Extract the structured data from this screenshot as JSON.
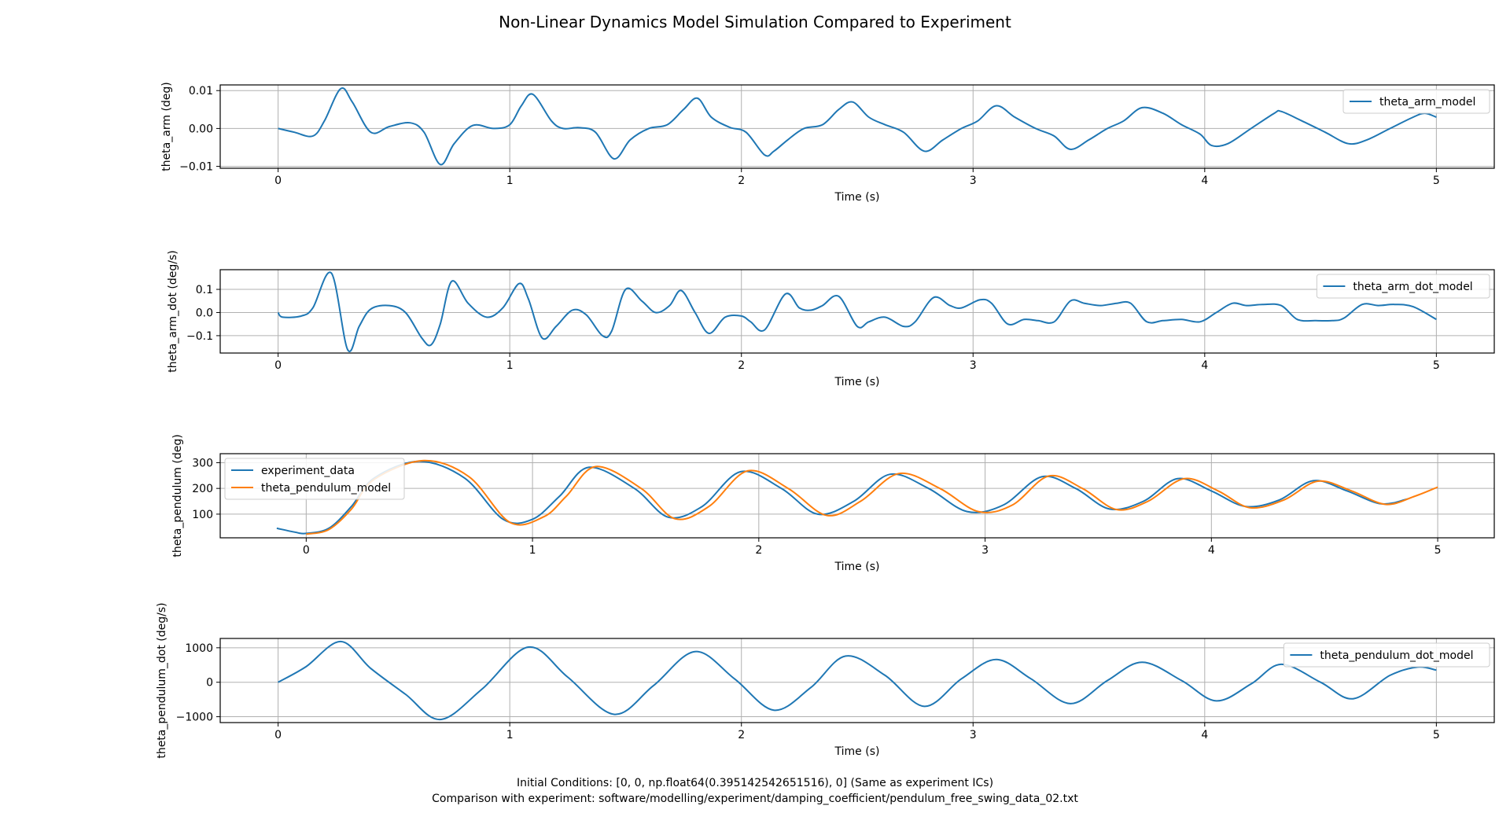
{
  "figure_title": "Non-Linear Dynamics Model Simulation Compared to Experiment",
  "captions": [
    "Initial Conditions: [0, 0, np.float64(0.395142542651516), 0] (Same as experiment ICs)",
    "Comparison with experiment: software/modelling/experiment/damping_coefficient/pendulum_free_swing_data_02.txt"
  ],
  "colors": {
    "blue": "#1f77b4",
    "orange": "#ff7f0e",
    "grid": "#b0b0b0"
  },
  "chart_data": [
    {
      "type": "line",
      "xlabel": "Time (s)",
      "ylabel": "theta_arm (deg)",
      "xlim": [
        -0.25,
        5.25
      ],
      "ylim": [
        -0.0105,
        0.0115
      ],
      "xticks": [
        0,
        1,
        2,
        3,
        4,
        5
      ],
      "yticks": [
        -0.01,
        0.0,
        0.01
      ],
      "ytick_labels": [
        "−0.01",
        "0.00",
        "0.01"
      ],
      "grid": true,
      "legend_position": "upper right",
      "series": [
        {
          "name": "theta_arm_model",
          "color": "#1f77b4",
          "x": [
            0,
            0.07,
            0.15,
            0.2,
            0.27,
            0.32,
            0.4,
            0.48,
            0.57,
            0.63,
            0.7,
            0.76,
            0.84,
            0.93,
            1.0,
            1.05,
            1.1,
            1.18,
            1.23,
            1.3,
            1.37,
            1.45,
            1.52,
            1.6,
            1.68,
            1.75,
            1.81,
            1.87,
            1.95,
            2.02,
            2.1,
            2.14,
            2.2,
            2.27,
            2.35,
            2.42,
            2.48,
            2.55,
            2.62,
            2.7,
            2.79,
            2.87,
            2.95,
            3.02,
            3.1,
            3.18,
            3.27,
            3.35,
            3.42,
            3.5,
            3.58,
            3.65,
            3.73,
            3.82,
            3.9,
            3.98,
            4.03,
            4.1,
            4.2,
            4.3,
            4.33,
            4.42,
            4.52,
            4.62,
            4.7,
            4.8,
            4.9,
            4.95,
            5.0
          ],
          "y": [
            0,
            -0.001,
            -0.002,
            0.002,
            0.0105,
            0.007,
            -0.001,
            0.0005,
            0.0015,
            -0.001,
            -0.0095,
            -0.004,
            0.0008,
            0.0,
            0.001,
            0.006,
            0.009,
            0.002,
            0.0,
            0.0002,
            -0.001,
            -0.008,
            -0.003,
            0.0,
            0.001,
            0.005,
            0.008,
            0.003,
            0.0003,
            -0.001,
            -0.007,
            -0.006,
            -0.003,
            0.0,
            0.001,
            0.005,
            0.007,
            0.003,
            0.001,
            -0.001,
            -0.006,
            -0.003,
            0.0,
            0.002,
            0.006,
            0.003,
            0.0,
            -0.002,
            -0.0055,
            -0.003,
            0.0,
            0.002,
            0.0055,
            0.004,
            0.001,
            -0.0015,
            -0.0045,
            -0.004,
            0.0,
            0.004,
            0.0045,
            0.002,
            -0.001,
            -0.004,
            -0.003,
            0.0,
            0.003,
            0.004,
            0.003
          ]
        }
      ]
    },
    {
      "type": "line",
      "xlabel": "Time (s)",
      "ylabel": "theta_arm_dot (deg/s)",
      "xlim": [
        -0.25,
        5.25
      ],
      "ylim": [
        -0.175,
        0.185
      ],
      "xticks": [
        0,
        1,
        2,
        3,
        4,
        5
      ],
      "yticks": [
        -0.1,
        0.0,
        0.1
      ],
      "ytick_labels": [
        "−0.1",
        "0.0",
        "0.1"
      ],
      "grid": true,
      "legend_position": "upper right",
      "series": [
        {
          "name": "theta_arm_dot_model",
          "color": "#1f77b4",
          "x": [
            0,
            0.02,
            0.1,
            0.15,
            0.23,
            0.3,
            0.35,
            0.4,
            0.48,
            0.55,
            0.62,
            0.66,
            0.7,
            0.75,
            0.82,
            0.9,
            0.97,
            1.04,
            1.08,
            1.14,
            1.2,
            1.27,
            1.33,
            1.4,
            1.44,
            1.5,
            1.57,
            1.63,
            1.69,
            1.74,
            1.8,
            1.86,
            1.93,
            2.0,
            2.04,
            2.1,
            2.19,
            2.25,
            2.3,
            2.35,
            2.42,
            2.5,
            2.55,
            2.62,
            2.7,
            2.75,
            2.83,
            2.9,
            2.95,
            3.03,
            3.08,
            3.15,
            3.22,
            3.28,
            3.35,
            3.42,
            3.48,
            3.55,
            3.62,
            3.68,
            3.75,
            3.82,
            3.9,
            3.98,
            4.05,
            4.12,
            4.18,
            4.25,
            4.33,
            4.4,
            4.48,
            4.55,
            4.6,
            4.68,
            4.75,
            4.82,
            4.9,
            5.0
          ],
          "y": [
            0.0,
            -0.02,
            -0.015,
            0.02,
            0.17,
            -0.16,
            -0.06,
            0.015,
            0.03,
            0.0,
            -0.11,
            -0.14,
            -0.05,
            0.135,
            0.04,
            -0.02,
            0.02,
            0.125,
            0.06,
            -0.11,
            -0.06,
            0.01,
            -0.01,
            -0.1,
            -0.08,
            0.1,
            0.05,
            0.0,
            0.03,
            0.095,
            0.0,
            -0.09,
            -0.02,
            -0.015,
            -0.04,
            -0.075,
            0.08,
            0.02,
            0.01,
            0.03,
            0.07,
            -0.06,
            -0.04,
            -0.02,
            -0.06,
            -0.04,
            0.065,
            0.03,
            0.02,
            0.055,
            0.04,
            -0.05,
            -0.03,
            -0.035,
            -0.04,
            0.05,
            0.04,
            0.03,
            0.04,
            0.04,
            -0.04,
            -0.035,
            -0.03,
            -0.04,
            0.0,
            0.04,
            0.03,
            0.035,
            0.03,
            -0.03,
            -0.035,
            -0.035,
            -0.025,
            0.035,
            0.03,
            0.035,
            0.025,
            -0.03
          ]
        }
      ]
    },
    {
      "type": "line",
      "xlabel": "Time (s)",
      "ylabel": "theta_pendulum (deg)",
      "xlim": [
        -0.38,
        5.25
      ],
      "ylim": [
        8,
        335
      ],
      "xticks": [
        0,
        1,
        2,
        3,
        4,
        5
      ],
      "yticks": [
        100,
        200,
        300
      ],
      "ytick_labels": [
        "100",
        "200",
        "300"
      ],
      "grid": true,
      "legend_position": "upper left",
      "series": [
        {
          "name": "experiment_data",
          "color": "#1f77b4",
          "x": [
            -0.13,
            -0.05,
            0.0,
            0.1,
            0.2,
            0.3,
            0.5,
            0.7,
            0.87,
            1.0,
            1.12,
            1.25,
            1.45,
            1.6,
            1.75,
            1.92,
            2.1,
            2.26,
            2.42,
            2.58,
            2.75,
            2.92,
            3.08,
            3.25,
            3.4,
            3.55,
            3.7,
            3.85,
            4.0,
            4.15,
            4.3,
            4.45,
            4.6,
            4.75,
            4.87
          ],
          "y": [
            45,
            30,
            25,
            45,
            130,
            240,
            305,
            240,
            80,
            80,
            170,
            282,
            200,
            88,
            130,
            265,
            200,
            100,
            150,
            255,
            200,
            110,
            135,
            245,
            200,
            120,
            150,
            238,
            190,
            130,
            155,
            230,
            190,
            140,
            160
          ]
        },
        {
          "name": "theta_pendulum_model",
          "color": "#ff7f0e",
          "x": [
            0.0,
            0.1,
            0.2,
            0.3,
            0.52,
            0.72,
            0.9,
            1.05,
            1.15,
            1.28,
            1.48,
            1.63,
            1.78,
            1.95,
            2.13,
            2.3,
            2.45,
            2.62,
            2.8,
            2.97,
            3.12,
            3.28,
            3.43,
            3.58,
            3.72,
            3.88,
            4.03,
            4.17,
            4.32,
            4.47,
            4.62,
            4.77,
            4.9,
            5.0
          ],
          "y": [
            22,
            40,
            120,
            235,
            308,
            245,
            68,
            90,
            170,
            285,
            200,
            82,
            130,
            268,
            200,
            95,
            150,
            258,
            200,
            110,
            135,
            248,
            200,
            118,
            150,
            238,
            190,
            125,
            155,
            228,
            190,
            138,
            170,
            205
          ]
        }
      ]
    },
    {
      "type": "line",
      "xlabel": "Time (s)",
      "ylabel": "theta_pendulum_dot (deg/s)",
      "xlim": [
        -0.25,
        5.25
      ],
      "ylim": [
        -1170,
        1270
      ],
      "xticks": [
        0,
        1,
        2,
        3,
        4,
        5
      ],
      "yticks": [
        -1000,
        0,
        1000
      ],
      "ytick_labels": [
        "−1000",
        "0",
        "1000"
      ],
      "grid": true,
      "legend_position": "upper right",
      "series": [
        {
          "name": "theta_pendulum_dot_model",
          "color": "#1f77b4",
          "x": [
            0,
            0.12,
            0.27,
            0.4,
            0.55,
            0.7,
            0.88,
            1.08,
            1.25,
            1.45,
            1.62,
            1.8,
            1.97,
            2.14,
            2.3,
            2.45,
            2.62,
            2.79,
            2.95,
            3.1,
            3.25,
            3.42,
            3.58,
            3.73,
            3.9,
            4.05,
            4.2,
            4.33,
            4.5,
            4.64,
            4.8,
            4.92,
            5.0
          ],
          "y": [
            0,
            450,
            1180,
            400,
            -350,
            -1080,
            -200,
            1020,
            150,
            -930,
            -100,
            890,
            100,
            -810,
            -150,
            760,
            200,
            -700,
            100,
            660,
            100,
            -620,
            50,
            580,
            50,
            -540,
            -50,
            520,
            0,
            -480,
            200,
            440,
            350
          ]
        }
      ]
    }
  ]
}
